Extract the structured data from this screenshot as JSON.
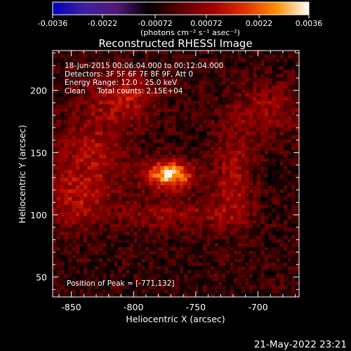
{
  "chart_data": {
    "type": "heatmap",
    "title": "Reconstructed RHESSI Image",
    "colorbar": {
      "ticks": [
        "-0.0036",
        "-0.0022",
        "-0.00072",
        "0.00072",
        "0.0022",
        "0.0036"
      ],
      "range": [
        -0.0036,
        0.0036
      ],
      "unit_label": "(photons cm⁻² s⁻¹ asec⁻²)",
      "colors": [
        "#0000c0",
        "#4020a0",
        "#501878",
        "#000000",
        "#5a0000",
        "#a00000",
        "#e03000",
        "#ff9000",
        "#ffffff"
      ]
    },
    "xlabel": "Heliocentric X (arcsec)",
    "ylabel": "Heliocentric Y (arcsec)",
    "xlim": [
      -865,
      -667
    ],
    "ylim": [
      34,
      232
    ],
    "xticks": [
      -850,
      -800,
      -750,
      -700
    ],
    "yticks": [
      50,
      100,
      150,
      200
    ],
    "annotations": [
      "18-Jun-2015 00:06:04.000 to 00:12:04.000",
      "Detectors: 3F 5F 6F 7F 8F 9F, Att 0",
      "Energy Range: 12.0 - 25.0 keV",
      "Clean     Total counts: 2.15E+04"
    ],
    "peak_label": "Position of Peak = [-771,132]",
    "peak_value": 0.0036,
    "sources": [
      {
        "x": -771,
        "y": 132,
        "sx": 13,
        "sy": 8,
        "amp": 1.0
      },
      {
        "x": -805,
        "y": 195,
        "sx": 18,
        "sy": 12,
        "amp": 0.4
      },
      {
        "x": -832,
        "y": 150,
        "sx": 22,
        "sy": 30,
        "amp": 0.35
      },
      {
        "x": -720,
        "y": 130,
        "sx": 12,
        "sy": 30,
        "amp": 0.35
      },
      {
        "x": -690,
        "y": 185,
        "sx": 22,
        "sy": 16,
        "amp": 0.3
      },
      {
        "x": -765,
        "y": 100,
        "sx": 35,
        "sy": 9,
        "amp": 0.3
      },
      {
        "x": -850,
        "y": 110,
        "sx": 15,
        "sy": 18,
        "amp": 0.3
      }
    ],
    "grid": false
  },
  "footer": {
    "timestamp": "21-May-2022 23:21"
  }
}
